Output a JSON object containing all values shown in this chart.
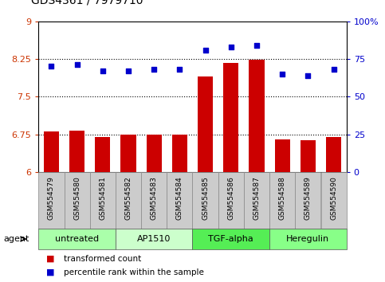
{
  "title": "GDS4361 / 7979710",
  "samples": [
    "GSM554579",
    "GSM554580",
    "GSM554581",
    "GSM554582",
    "GSM554583",
    "GSM554584",
    "GSM554585",
    "GSM554586",
    "GSM554587",
    "GSM554588",
    "GSM554589",
    "GSM554590"
  ],
  "red_values": [
    6.8,
    6.83,
    6.7,
    6.75,
    6.75,
    6.75,
    7.9,
    8.17,
    8.23,
    6.65,
    6.63,
    6.7
  ],
  "blue_values": [
    70,
    71,
    67,
    67,
    68,
    68,
    81,
    83,
    84,
    65,
    64,
    68
  ],
  "ylim_left": [
    6,
    9
  ],
  "ylim_right": [
    0,
    100
  ],
  "yticks_left": [
    6,
    6.75,
    7.5,
    8.25,
    9
  ],
  "ytick_labels_left": [
    "6",
    "6.75",
    "7.5",
    "8.25",
    "9"
  ],
  "yticks_right": [
    0,
    25,
    50,
    75,
    100
  ],
  "ytick_labels_right": [
    "0",
    "25",
    "50",
    "75",
    "100%"
  ],
  "hlines": [
    6.75,
    7.5,
    8.25
  ],
  "bar_color": "#cc0000",
  "dot_color": "#0000cc",
  "groups": [
    {
      "label": "untreated",
      "start": 0,
      "end": 3,
      "color": "#aaffaa"
    },
    {
      "label": "AP1510",
      "start": 3,
      "end": 6,
      "color": "#ccffcc"
    },
    {
      "label": "TGF-alpha",
      "start": 6,
      "end": 9,
      "color": "#55ee55"
    },
    {
      "label": "Heregulin",
      "start": 9,
      "end": 12,
      "color": "#88ff88"
    }
  ],
  "legend_red": "transformed count",
  "legend_blue": "percentile rank within the sample",
  "agent_label": "agent",
  "box_bg": "#cccccc"
}
